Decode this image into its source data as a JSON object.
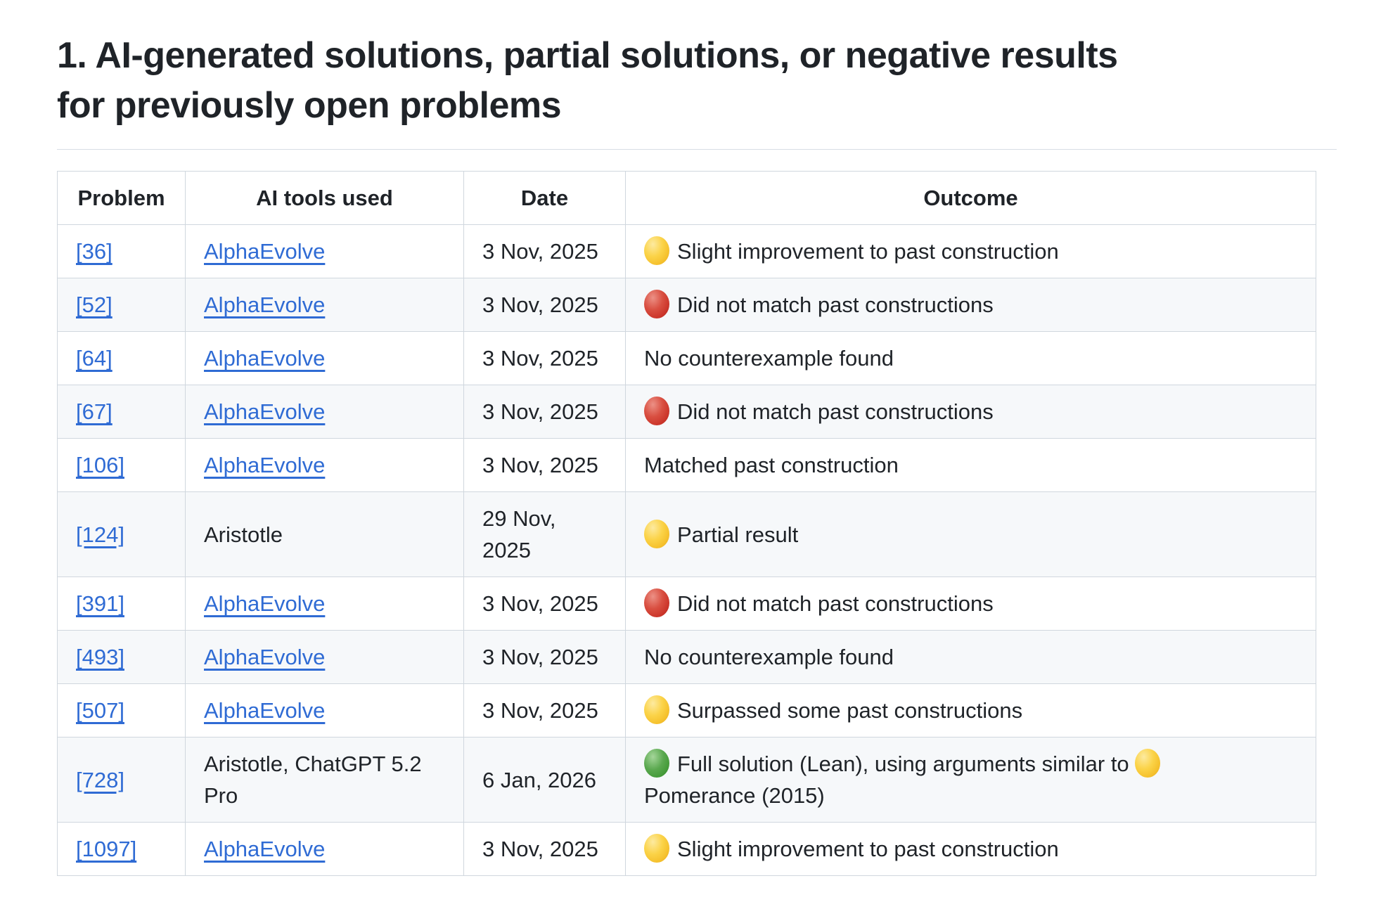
{
  "heading": {
    "text": "1. AI-generated solutions, partial solutions, or negative results for previously open problems",
    "lines": [
      "1. AI-generated solutions, partial solutions, or negative results",
      "for previously open problems"
    ]
  },
  "table": {
    "headers": [
      "Problem",
      "AI tools used",
      "Date",
      "Outcome"
    ],
    "rows": [
      {
        "problem": {
          "label": "[36]",
          "link": true
        },
        "tools": {
          "label": "AlphaEvolve",
          "link": true
        },
        "date": "3 Nov, 2025",
        "outcome": [
          {
            "circle": "yellow"
          },
          {
            "text": "Slight improvement to past construction"
          }
        ]
      },
      {
        "problem": {
          "label": "[52]",
          "link": true
        },
        "tools": {
          "label": "AlphaEvolve",
          "link": true
        },
        "date": "3 Nov, 2025",
        "outcome": [
          {
            "circle": "red"
          },
          {
            "text": "Did not match past constructions"
          }
        ]
      },
      {
        "problem": {
          "label": "[64]",
          "link": true
        },
        "tools": {
          "label": "AlphaEvolve",
          "link": true
        },
        "date": "3 Nov, 2025",
        "outcome": [
          {
            "text": "No counterexample found"
          }
        ]
      },
      {
        "problem": {
          "label": "[67]",
          "link": true
        },
        "tools": {
          "label": "AlphaEvolve",
          "link": true
        },
        "date": "3 Nov, 2025",
        "outcome": [
          {
            "circle": "red"
          },
          {
            "text": "Did not match past constructions"
          }
        ]
      },
      {
        "problem": {
          "label": "[106]",
          "link": true
        },
        "tools": {
          "label": "AlphaEvolve",
          "link": true
        },
        "date": "3 Nov, 2025",
        "outcome": [
          {
            "text": "Matched past construction"
          }
        ]
      },
      {
        "problem": {
          "label": "[124]",
          "link": true
        },
        "tools": {
          "label": "Aristotle",
          "link": false
        },
        "date": "29 Nov, 2025",
        "outcome": [
          {
            "circle": "yellow"
          },
          {
            "text": "Partial result"
          }
        ]
      },
      {
        "problem": {
          "label": "[391]",
          "link": true
        },
        "tools": {
          "label": "AlphaEvolve",
          "link": true
        },
        "date": "3 Nov, 2025",
        "outcome": [
          {
            "circle": "red"
          },
          {
            "text": "Did not match past constructions"
          }
        ]
      },
      {
        "problem": {
          "label": "[493]",
          "link": true
        },
        "tools": {
          "label": "AlphaEvolve",
          "link": true
        },
        "date": "3 Nov, 2025",
        "outcome": [
          {
            "text": "No counterexample found"
          }
        ]
      },
      {
        "problem": {
          "label": "[507]",
          "link": true
        },
        "tools": {
          "label": "AlphaEvolve",
          "link": true
        },
        "date": "3 Nov, 2025",
        "outcome": [
          {
            "circle": "yellow"
          },
          {
            "text": "Surpassed some past constructions"
          }
        ]
      },
      {
        "problem": {
          "label": "[728]",
          "link": true
        },
        "tools": {
          "label": "Aristotle, ChatGPT 5.2 Pro",
          "link": false
        },
        "date": "6 Jan, 2026",
        "outcome": [
          {
            "circle": "green"
          },
          {
            "text": "Full solution (Lean), using arguments similar to "
          },
          {
            "circle": "yellow"
          },
          {
            "break": true
          },
          {
            "text": "Pomerance (2015)"
          }
        ]
      },
      {
        "problem": {
          "label": "[1097]",
          "link": true
        },
        "tools": {
          "label": "AlphaEvolve",
          "link": true
        },
        "date": "3 Nov, 2025",
        "outcome": [
          {
            "circle": "yellow"
          },
          {
            "text": "Slight improvement to past construction"
          }
        ]
      }
    ]
  },
  "colors": {
    "text": "#1f2328",
    "link": "#2f6bd4",
    "table_border": "#d0d7de",
    "heading_rule": "#d8dee4",
    "row_stripe": "#f6f8fa",
    "circle_yellow": "#fbd348",
    "circle_red": "#cb352a",
    "circle_green": "#459b3a"
  },
  "icons": {
    "yellow_circle": "yellow-circle-icon",
    "red_circle": "red-circle-icon",
    "green_circle": "green-circle-icon"
  }
}
